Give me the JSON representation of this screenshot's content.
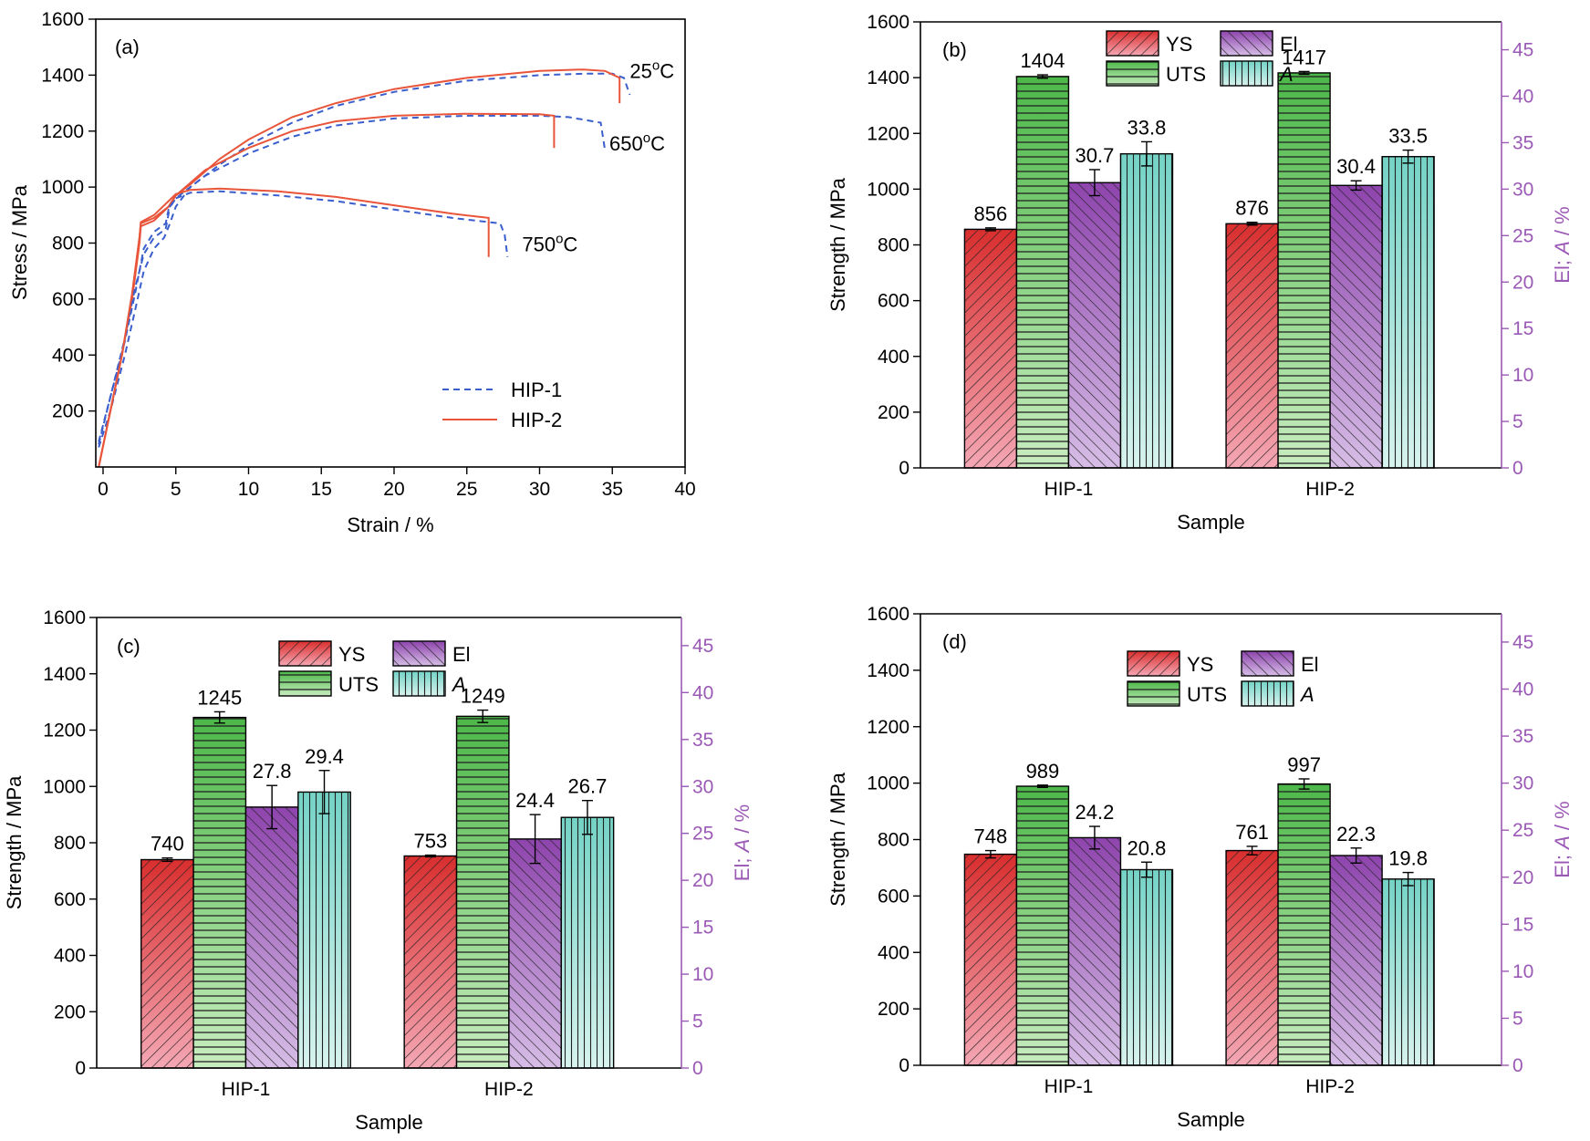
{
  "figure": {
    "colors": {
      "hip1": "#3a5fcd",
      "hip2": "#e8553a",
      "purple_axis": "#9b59b6",
      "ys": [
        "#d92e2e",
        "#f4a7b4"
      ],
      "uts": [
        "#4cb848",
        "#c8ecc0"
      ],
      "el": [
        "#8e44ad",
        "#d6bde6"
      ],
      "a": [
        "#74d3c6",
        "#d8f3ee"
      ]
    }
  },
  "chart_data": [
    {
      "panel": "(a)",
      "type": "line",
      "xlabel": "Strain / %",
      "ylabel": "Stress / MPa",
      "xlim": [
        -0.5,
        40
      ],
      "ylim": [
        0,
        1600
      ],
      "xticks": [
        0,
        5,
        10,
        15,
        20,
        25,
        30,
        35,
        40
      ],
      "yticks": [
        200,
        400,
        600,
        800,
        1000,
        1200,
        1400,
        1600
      ],
      "legend": {
        "placement": "bottom-right",
        "entries": [
          {
            "name": "HIP-1",
            "style": "dashed",
            "color_key": "hip1"
          },
          {
            "name": "HIP-2",
            "style": "solid",
            "color_key": "hip2"
          }
        ]
      },
      "annotations": [
        {
          "label": "25",
          "sup": "o",
          "unit": "C",
          "x": 36.2,
          "y": 1390
        },
        {
          "label": "650",
          "sup": "o",
          "unit": "C",
          "x": 34.8,
          "y": 1130
        },
        {
          "label": "750",
          "sup": "o",
          "unit": "C",
          "x": 28.8,
          "y": 770
        }
      ],
      "series": [
        {
          "name": "HIP-1",
          "temp": "25C",
          "style": "dashed",
          "points": [
            [
              -0.3,
              70
            ],
            [
              0.5,
              200
            ],
            [
              1.5,
              400
            ],
            [
              2.2,
              560
            ],
            [
              2.8,
              700
            ],
            [
              3.5,
              780
            ],
            [
              4.2,
              820
            ],
            [
              4.6,
              870
            ],
            [
              5,
              930
            ],
            [
              6,
              1000
            ],
            [
              8,
              1080
            ],
            [
              10,
              1150
            ],
            [
              13,
              1230
            ],
            [
              16,
              1290
            ],
            [
              20,
              1340
            ],
            [
              25,
              1380
            ],
            [
              30,
              1400
            ],
            [
              33,
              1405
            ],
            [
              35,
              1405
            ],
            [
              35.8,
              1390
            ],
            [
              36.2,
              1330
            ]
          ]
        },
        {
          "name": "HIP-2",
          "temp": "25C",
          "style": "solid",
          "points": [
            [
              -0.3,
              0
            ],
            [
              0.5,
              200
            ],
            [
              1.3,
              400
            ],
            [
              2,
              600
            ],
            [
              2.5,
              800
            ],
            [
              2.6,
              860
            ],
            [
              3.5,
              880
            ],
            [
              4.5,
              930
            ],
            [
              5,
              970
            ],
            [
              6,
              1010
            ],
            [
              8,
              1100
            ],
            [
              10,
              1170
            ],
            [
              13,
              1250
            ],
            [
              16,
              1300
            ],
            [
              20,
              1350
            ],
            [
              25,
              1390
            ],
            [
              30,
              1415
            ],
            [
              33,
              1420
            ],
            [
              34.5,
              1415
            ],
            [
              35.5,
              1390
            ],
            [
              35.5,
              1300
            ]
          ]
        },
        {
          "name": "HIP-1",
          "temp": "650C",
          "style": "dashed",
          "points": [
            [
              -0.3,
              90
            ],
            [
              0.5,
              250
            ],
            [
              1.5,
              450
            ],
            [
              2.2,
              620
            ],
            [
              2.8,
              780
            ],
            [
              3.5,
              840
            ],
            [
              4.3,
              870
            ],
            [
              4.5,
              920
            ],
            [
              5,
              960
            ],
            [
              7,
              1040
            ],
            [
              10,
              1120
            ],
            [
              13,
              1180
            ],
            [
              16,
              1220
            ],
            [
              20,
              1245
            ],
            [
              25,
              1255
            ],
            [
              30,
              1255
            ],
            [
              32,
              1250
            ],
            [
              34.2,
              1230
            ],
            [
              34.5,
              1130
            ]
          ]
        },
        {
          "name": "HIP-2",
          "temp": "650C",
          "style": "solid",
          "points": [
            [
              -0.3,
              0
            ],
            [
              0.5,
              200
            ],
            [
              1.3,
              400
            ],
            [
              2,
              620
            ],
            [
              2.5,
              820
            ],
            [
              2.6,
              870
            ],
            [
              3.5,
              890
            ],
            [
              4.5,
              930
            ],
            [
              5,
              970
            ],
            [
              7,
              1060
            ],
            [
              10,
              1140
            ],
            [
              13,
              1200
            ],
            [
              16,
              1235
            ],
            [
              20,
              1255
            ],
            [
              25,
              1262
            ],
            [
              30,
              1260
            ],
            [
              31,
              1255
            ],
            [
              31,
              1140
            ]
          ]
        },
        {
          "name": "HIP-1",
          "temp": "750C",
          "style": "dashed",
          "points": [
            [
              -0.3,
              80
            ],
            [
              0.5,
              250
            ],
            [
              1.5,
              460
            ],
            [
              2.2,
              640
            ],
            [
              2.8,
              760
            ],
            [
              3.5,
              820
            ],
            [
              4.3,
              850
            ],
            [
              4.6,
              930
            ],
            [
              5,
              960
            ],
            [
              6,
              980
            ],
            [
              8,
              985
            ],
            [
              12,
              970
            ],
            [
              16,
              950
            ],
            [
              20,
              920
            ],
            [
              24,
              890
            ],
            [
              27.3,
              870
            ],
            [
              27.6,
              830
            ],
            [
              27.8,
              750
            ]
          ]
        },
        {
          "name": "HIP-2",
          "temp": "750C",
          "style": "solid",
          "points": [
            [
              -0.3,
              0
            ],
            [
              0.5,
              200
            ],
            [
              1.3,
              400
            ],
            [
              2,
              620
            ],
            [
              2.5,
              820
            ],
            [
              2.6,
              875
            ],
            [
              3.5,
              900
            ],
            [
              4.5,
              950
            ],
            [
              5,
              975
            ],
            [
              6,
              990
            ],
            [
              8,
              995
            ],
            [
              12,
              985
            ],
            [
              16,
              965
            ],
            [
              20,
              935
            ],
            [
              24,
              905
            ],
            [
              26.5,
              890
            ],
            [
              26.5,
              750
            ]
          ]
        }
      ]
    },
    {
      "panel": "(b)",
      "type": "bar",
      "xlabel": "Sample",
      "ylabel": "Strength / MPa",
      "y2label_parts": [
        "El; ",
        "A",
        " / %"
      ],
      "categories": [
        "HIP-1",
        "HIP-2"
      ],
      "ylim": [
        0,
        1600
      ],
      "y2lim": [
        0,
        48
      ],
      "yticks": [
        0,
        200,
        400,
        600,
        800,
        1000,
        1200,
        1400,
        1600
      ],
      "y2ticks": [
        0,
        5,
        10,
        15,
        20,
        25,
        30,
        35,
        40,
        45
      ],
      "legend": {
        "placement": "top-center",
        "entries": [
          "YS",
          "El",
          "UTS",
          "A"
        ]
      },
      "series": [
        {
          "name": "YS",
          "axis": "left",
          "values": [
            856,
            876
          ],
          "err": [
            5,
            5
          ],
          "labels": [
            "856",
            "876"
          ]
        },
        {
          "name": "UTS",
          "axis": "left",
          "values": [
            1404,
            1417
          ],
          "err": [
            6,
            5
          ],
          "labels": [
            "1404",
            "1417"
          ]
        },
        {
          "name": "El",
          "axis": "right",
          "values": [
            30.7,
            30.4
          ],
          "err": [
            1.4,
            0.5
          ],
          "labels": [
            "30.7",
            "30.4"
          ]
        },
        {
          "name": "A",
          "axis": "right",
          "values": [
            33.8,
            33.5
          ],
          "err": [
            1.3,
            0.7
          ],
          "labels": [
            "33.8",
            "33.5"
          ]
        }
      ]
    },
    {
      "panel": "(c)",
      "type": "bar",
      "xlabel": "Sample",
      "ylabel": "Strength / MPa",
      "y2label_parts": [
        "El; ",
        "A",
        " / %"
      ],
      "categories": [
        "HIP-1",
        "HIP-2"
      ],
      "ylim": [
        0,
        1600
      ],
      "y2lim": [
        0,
        48
      ],
      "yticks": [
        0,
        200,
        400,
        600,
        800,
        1000,
        1200,
        1400,
        1600
      ],
      "y2ticks": [
        0,
        5,
        10,
        15,
        20,
        25,
        30,
        35,
        40,
        45
      ],
      "legend": {
        "placement": "top-center",
        "entries": [
          "YS",
          "El",
          "UTS",
          "A"
        ]
      },
      "series": [
        {
          "name": "YS",
          "axis": "left",
          "values": [
            740,
            753
          ],
          "err": [
            6,
            3
          ],
          "labels": [
            "740",
            "753"
          ]
        },
        {
          "name": "UTS",
          "axis": "left",
          "values": [
            1245,
            1249
          ],
          "err": [
            20,
            22
          ],
          "labels": [
            "1245",
            "1249"
          ]
        },
        {
          "name": "El",
          "axis": "right",
          "values": [
            27.8,
            24.4
          ],
          "err": [
            2.3,
            2.6
          ],
          "labels": [
            "27.8",
            "24.4"
          ]
        },
        {
          "name": "A",
          "axis": "right",
          "values": [
            29.4,
            26.7
          ],
          "err": [
            2.3,
            1.8
          ],
          "labels": [
            "29.4",
            "26.7"
          ]
        }
      ]
    },
    {
      "panel": "(d)",
      "type": "bar",
      "xlabel": "Sample",
      "ylabel": "Strength / MPa",
      "y2label_parts": [
        "El; ",
        "A",
        " / %"
      ],
      "categories": [
        "HIP-1",
        "HIP-2"
      ],
      "ylim": [
        0,
        1600
      ],
      "y2lim": [
        0,
        48
      ],
      "yticks": [
        0,
        200,
        400,
        600,
        800,
        1000,
        1200,
        1400,
        1600
      ],
      "y2ticks": [
        0,
        5,
        10,
        15,
        20,
        25,
        30,
        35,
        40,
        45
      ],
      "legend": {
        "placement": "top-center",
        "entries": [
          "YS",
          "El",
          "UTS",
          "A"
        ]
      },
      "series": [
        {
          "name": "YS",
          "axis": "left",
          "values": [
            748,
            761
          ],
          "err": [
            13,
            15
          ],
          "labels": [
            "748",
            "761"
          ]
        },
        {
          "name": "UTS",
          "axis": "left",
          "values": [
            989,
            997
          ],
          "err": [
            4,
            18
          ],
          "labels": [
            "989",
            "997"
          ]
        },
        {
          "name": "El",
          "axis": "right",
          "values": [
            24.2,
            22.3
          ],
          "err": [
            1.2,
            0.8
          ],
          "labels": [
            "24.2",
            "22.3"
          ]
        },
        {
          "name": "A",
          "axis": "right",
          "values": [
            20.8,
            19.8
          ],
          "err": [
            0.8,
            0.7
          ],
          "labels": [
            "20.8",
            "19.8"
          ]
        }
      ]
    }
  ]
}
